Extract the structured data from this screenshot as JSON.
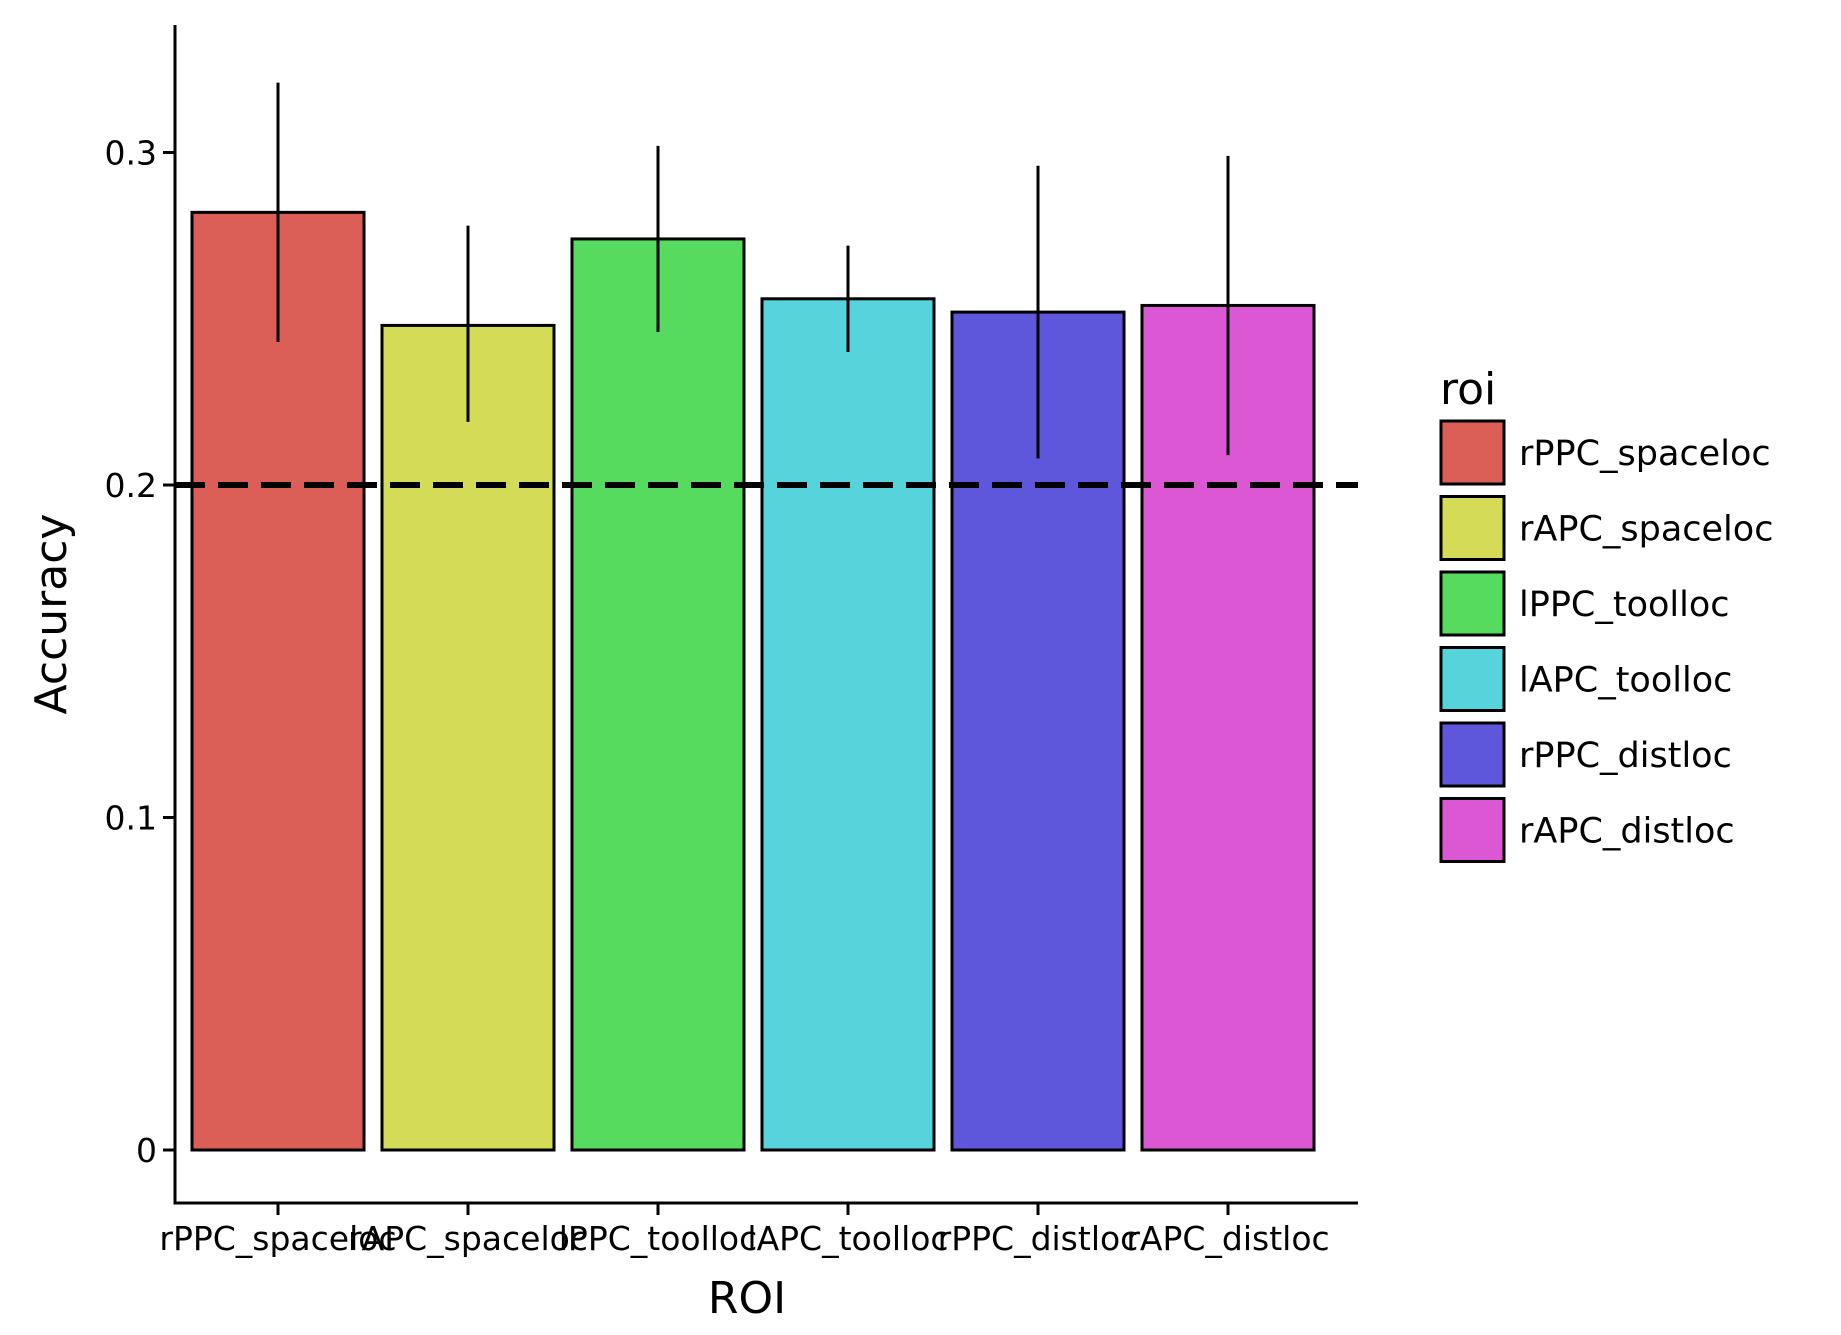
{
  "chart_data": {
    "type": "bar",
    "xlabel": "ROI",
    "ylabel": "Accuracy",
    "categories": [
      "rPPC_spaceloc",
      "rAPC_spaceloc",
      "lPPC_toolloc",
      "lAPC_toolloc",
      "rPPC_distloc",
      "rAPC_distloc"
    ],
    "values": [
      0.282,
      0.248,
      0.274,
      0.256,
      0.252,
      0.254
    ],
    "error_low": [
      0.243,
      0.219,
      0.246,
      0.24,
      0.208,
      0.209
    ],
    "error_high": [
      0.321,
      0.278,
      0.302,
      0.272,
      0.296,
      0.299
    ],
    "colors": [
      "#DB5F57",
      "#D3DB57",
      "#57DB5F",
      "#57D3DB",
      "#5F57DB",
      "#DB57D3"
    ],
    "reference_line": {
      "y": 0.2,
      "style": "dashed"
    },
    "yticks": [
      0,
      0.1,
      0.2,
      0.3
    ],
    "ytick_labels": [
      "0",
      "0.1",
      "0.2",
      "0.3"
    ],
    "ylim": [
      -0.016,
      0.337
    ],
    "grid": false,
    "legend": {
      "title": "roi",
      "position": "right",
      "entries": [
        "rPPC_spaceloc",
        "rAPC_spaceloc",
        "lPPC_toolloc",
        "lAPC_toolloc",
        "rPPC_distloc",
        "rAPC_distloc"
      ]
    }
  }
}
